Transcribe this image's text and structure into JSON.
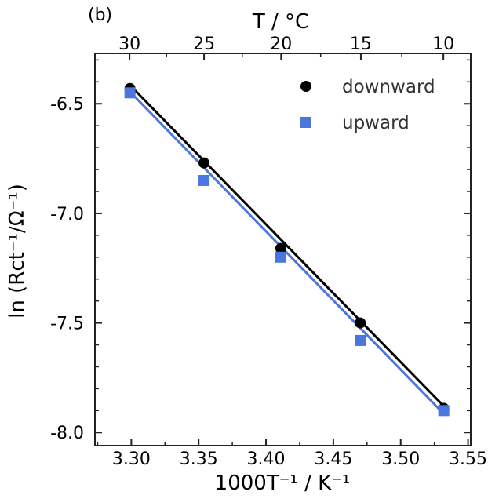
{
  "panel_label": "(b)",
  "chart_data": {
    "type": "scatter",
    "title": "",
    "xlabel": "1000T⁻¹ / K⁻¹",
    "ylabel": "ln (Rct⁻¹/Ω⁻¹)",
    "x2label": "T / °C",
    "xlim": [
      3.273,
      3.552
    ],
    "ylim": [
      -8.06,
      -6.27
    ],
    "xticks": [
      3.3,
      3.35,
      3.4,
      3.45,
      3.5,
      3.55
    ],
    "xtick_labels": [
      "3.30",
      "3.35",
      "3.40",
      "3.45",
      "3.50",
      "3.55"
    ],
    "yticks": [
      -6.5,
      -7.0,
      -7.5,
      -8.0
    ],
    "ytick_labels": [
      "-6.5",
      "-7.0",
      "-7.5",
      "-8.0"
    ],
    "x2ticks_celsius": [
      30,
      25,
      20,
      15,
      10
    ],
    "x2tick_labels": [
      "30",
      "25",
      "20",
      "15",
      "10"
    ],
    "legend_position": "top-right",
    "series": [
      {
        "name": "downward",
        "marker": "circle",
        "color": "#000000",
        "x": [
          3.299,
          3.354,
          3.411,
          3.47,
          3.532
        ],
        "y": [
          -6.43,
          -6.77,
          -7.16,
          -7.5,
          -7.89
        ],
        "fit": {
          "x": [
            3.299,
            3.532
          ],
          "y": [
            -6.415,
            -7.88
          ]
        }
      },
      {
        "name": "upward",
        "marker": "square",
        "color": "#4a76e0",
        "x": [
          3.299,
          3.354,
          3.411,
          3.47,
          3.532
        ],
        "y": [
          -6.45,
          -6.85,
          -7.2,
          -7.58,
          -7.9
        ],
        "fit": {
          "x": [
            3.299,
            3.532
          ],
          "y": [
            -6.445,
            -7.915
          ]
        }
      }
    ]
  }
}
